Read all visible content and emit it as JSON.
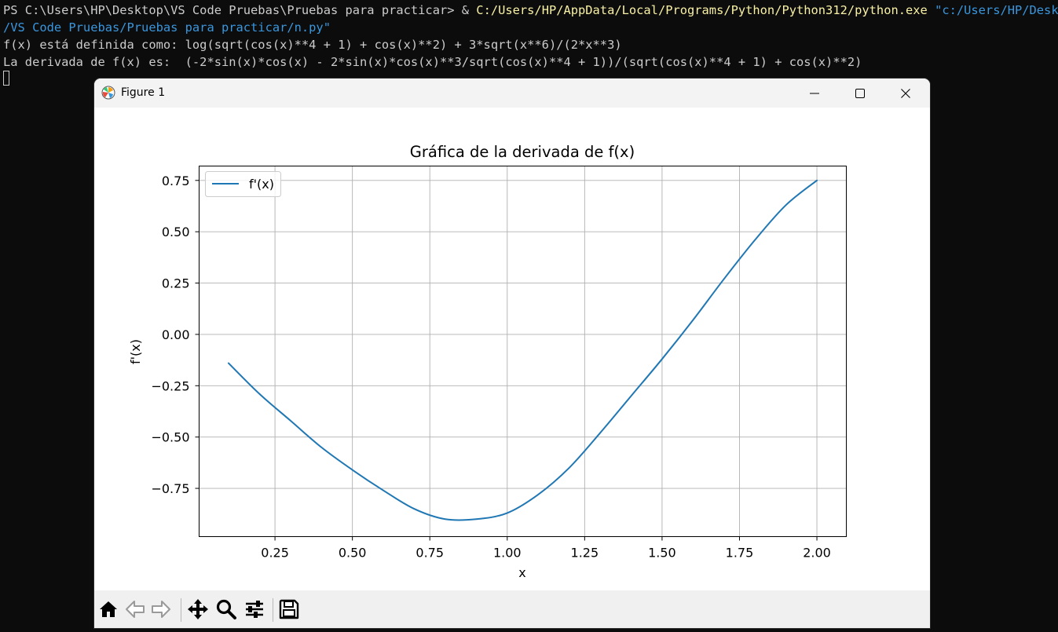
{
  "terminal": {
    "line1_prompt": "PS C:\\Users\\HP\\Desktop\\VS Code Pruebas\\Pruebas para practicar> & ",
    "line1_exe": "C:/Users/HP/AppData/Local/Programs/Python/Python312/python.exe",
    "line1_arg": " \"c:/Users/HP/Desktop",
    "line2_arg": "/VS Code Pruebas/Pruebas para practicar/n.py\"",
    "line3": "f(x) está definida como: log(sqrt(cos(x)**4 + 1) + cos(x)**2) + 3*sqrt(x**6)/(2*x**3)",
    "line4": "La derivada de f(x) es:  (-2*sin(x)*cos(x) - 2*sin(x)*cos(x)**3/sqrt(cos(x)**4 + 1))/(sqrt(cos(x)**4 + 1) + cos(x)**2)"
  },
  "window": {
    "title": "Figure 1",
    "icons": [
      "matplotlib-icon",
      "minimize-icon",
      "maximize-icon",
      "close-icon"
    ]
  },
  "toolbar": {
    "icons": [
      "home-icon",
      "back-icon",
      "forward-icon",
      "pan-icon",
      "zoom-icon",
      "configure-subplots-icon",
      "save-icon"
    ]
  },
  "chart_data": {
    "type": "line",
    "title": "Gráfica de la derivada de f(x)",
    "xlabel": "x",
    "ylabel": "f'(x)",
    "xlim": [
      0.005,
      2.095
    ],
    "ylim": [
      -0.985,
      0.82
    ],
    "xticks": [
      0.25,
      0.5,
      0.75,
      1.0,
      1.25,
      1.5,
      1.75,
      2.0
    ],
    "xtick_labels": [
      "0.25",
      "0.50",
      "0.75",
      "1.00",
      "1.25",
      "1.50",
      "1.75",
      "2.00"
    ],
    "yticks": [
      -0.75,
      -0.5,
      -0.25,
      0.0,
      0.25,
      0.5,
      0.75
    ],
    "ytick_labels": [
      "−0.75",
      "−0.50",
      "−0.25",
      "0.00",
      "0.25",
      "0.50",
      "0.75"
    ],
    "grid": true,
    "legend_position": "upper-left",
    "color": "#1f77b4",
    "series": [
      {
        "name": "f'(x)",
        "x": [
          0.1,
          0.2,
          0.3,
          0.4,
          0.5,
          0.6,
          0.7,
          0.8,
          0.9,
          1.0,
          1.1,
          1.2,
          1.3,
          1.4,
          1.5,
          1.6,
          1.7,
          1.8,
          1.9,
          2.0
        ],
        "y": [
          -0.14,
          -0.29,
          -0.42,
          -0.55,
          -0.66,
          -0.76,
          -0.85,
          -0.9,
          -0.9,
          -0.87,
          -0.78,
          -0.65,
          -0.48,
          -0.3,
          -0.12,
          0.07,
          0.27,
          0.46,
          0.63,
          0.75
        ]
      }
    ]
  }
}
